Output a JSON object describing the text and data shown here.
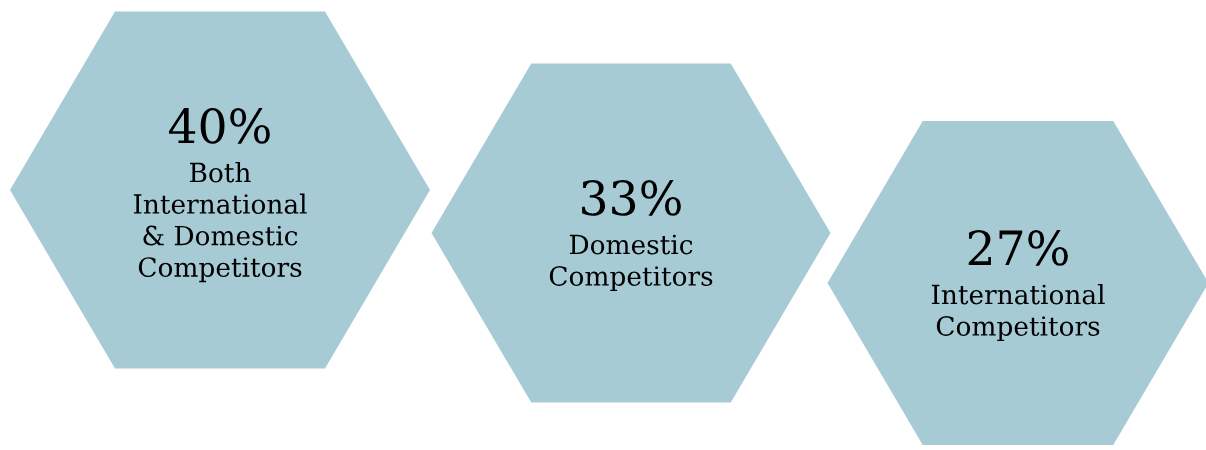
{
  "chart_data": {
    "type": "other",
    "categories": [
      "Both\nInternational\n& Domestic\nCompetitors",
      "Domestic\nCompetitors",
      "International\nCompetitors"
    ],
    "values": [
      40,
      33,
      27
    ],
    "value_labels": [
      "40%",
      "33%",
      "27%"
    ],
    "colors": [
      "#a7cbd5",
      "#a7cbd5",
      "#a7cbd5"
    ]
  }
}
